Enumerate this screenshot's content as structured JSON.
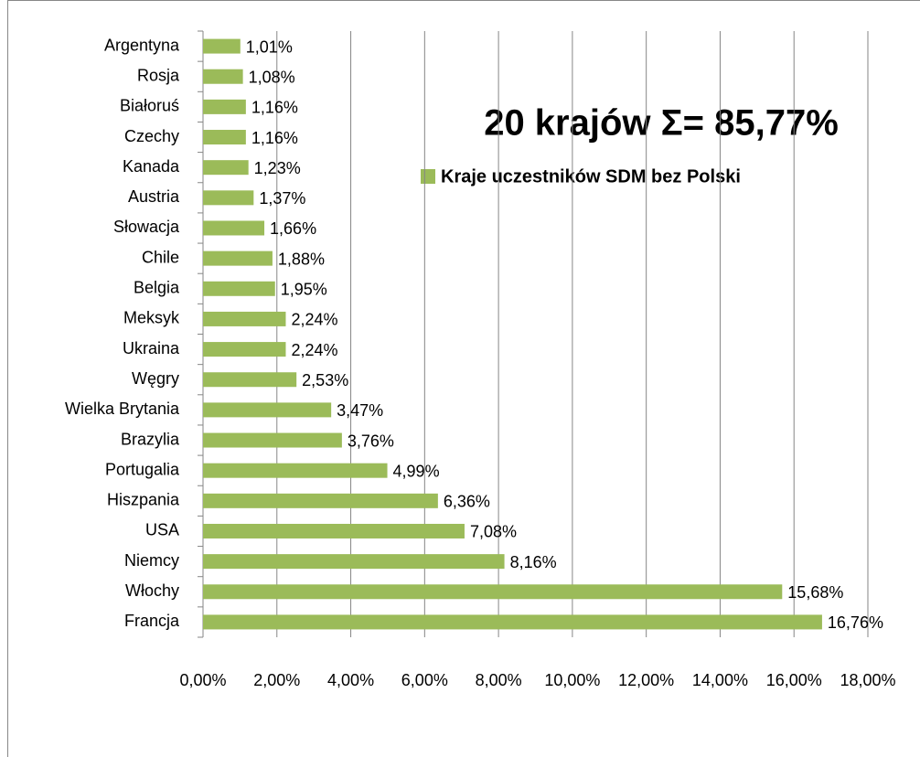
{
  "chart_data": {
    "type": "bar",
    "orientation": "horizontal",
    "annotation": "20 krajów Σ= 85,77%",
    "categories": [
      "Argentyna",
      "Rosja",
      "Białoruś",
      "Czechy",
      "Kanada",
      "Austria",
      "Słowacja",
      "Chile",
      "Belgia",
      "Meksyk",
      "Ukraina",
      "Węgry",
      "Wielka Brytania",
      "Brazylia",
      "Portugalia",
      "Hiszpania",
      "USA",
      "Niemcy",
      "Włochy",
      "Francja"
    ],
    "series": [
      {
        "name": "Kraje uczestników SDM bez Polski",
        "color": "#9bbb59",
        "values": [
          1.01,
          1.08,
          1.16,
          1.16,
          1.23,
          1.37,
          1.66,
          1.88,
          1.95,
          2.24,
          2.24,
          2.53,
          3.47,
          3.76,
          4.99,
          6.36,
          7.08,
          8.16,
          15.68,
          16.76
        ],
        "value_labels": [
          "1,01%",
          "1,08%",
          "1,16%",
          "1,16%",
          "1,23%",
          "1,37%",
          "1,66%",
          "1,88%",
          "1,95%",
          "2,24%",
          "2,24%",
          "2,53%",
          "3,47%",
          "3,76%",
          "4,99%",
          "6,36%",
          "7,08%",
          "8,16%",
          "15,68%",
          "16,76%"
        ]
      }
    ],
    "xlim": [
      0,
      18
    ],
    "xticks": [
      {
        "value": 0,
        "label": "0,00%"
      },
      {
        "value": 2,
        "label": "2,00%"
      },
      {
        "value": 4,
        "label": "4,00%"
      },
      {
        "value": 6,
        "label": "6,00%"
      },
      {
        "value": 8,
        "label": "8,00%"
      },
      {
        "value": 10,
        "label": "10,00%"
      },
      {
        "value": 12,
        "label": "12,00%"
      },
      {
        "value": 14,
        "label": "14,00%"
      },
      {
        "value": 16,
        "label": "16,00%"
      },
      {
        "value": 18,
        "label": "18,00%"
      }
    ],
    "grid": true
  }
}
